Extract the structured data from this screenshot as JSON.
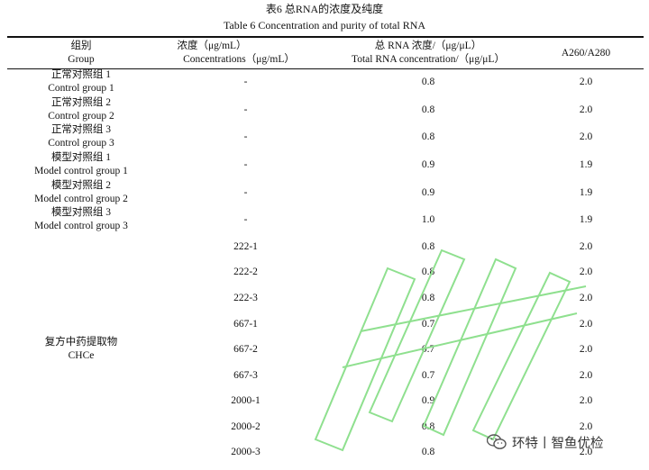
{
  "caption": {
    "zh": "表6  总RNA的浓度及纯度",
    "en": "Table 6 Concentration and purity of total RNA"
  },
  "header": {
    "group_zh": "组别",
    "group_en": "Group",
    "conc_zh": "浓度（μg/mL）",
    "conc_en": "Concentrations（μg/mL）",
    "rna_zh": "总 RNA 浓度/（μg/μL）",
    "rna_en": "Total RNA concentration/（μg/μL）",
    "ratio": "A260/A280"
  },
  "rows": [
    {
      "group_zh": "正常对照组 1",
      "group_en": "Control group 1",
      "conc": "-",
      "rna": "0.8",
      "ratio": "2.0"
    },
    {
      "group_zh": "正常对照组 2",
      "group_en": "Control group 2",
      "conc": "-",
      "rna": "0.8",
      "ratio": "2.0"
    },
    {
      "group_zh": "正常对照组 3",
      "group_en": "Control group 3",
      "conc": "-",
      "rna": "0.8",
      "ratio": "2.0"
    },
    {
      "group_zh": "模型对照组 1",
      "group_en": "Model control group 1",
      "conc": "-",
      "rna": "0.9",
      "ratio": "1.9"
    },
    {
      "group_zh": "模型对照组 2",
      "group_en": "Model control group 2",
      "conc": "-",
      "rna": "0.9",
      "ratio": "1.9"
    },
    {
      "group_zh": "模型对照组 3",
      "group_en": "Model control group 3",
      "conc": "-",
      "rna": "1.0",
      "ratio": "1.9"
    },
    {
      "conc": "222-1",
      "rna": "0.8",
      "ratio": "2.0"
    },
    {
      "conc": "222-2",
      "rna": "0.8",
      "ratio": "2.0"
    },
    {
      "conc": "222-3",
      "rna": "0.8",
      "ratio": "2.0"
    },
    {
      "conc": "667-1",
      "rna": "0.7",
      "ratio": "2.0"
    },
    {
      "conc": "667-2",
      "rna": "0.7",
      "ratio": "2.0"
    },
    {
      "conc": "667-3",
      "rna": "0.7",
      "ratio": "2.0"
    },
    {
      "conc": "2000-1",
      "rna": "0.9",
      "ratio": "2.0"
    },
    {
      "conc": "2000-2",
      "rna": "0.8",
      "ratio": "2.0"
    },
    {
      "conc": "2000-3",
      "rna": "0.8",
      "ratio": "2.0"
    }
  ],
  "chce_group": {
    "zh": "复方中药提取物",
    "en": "CHCe"
  },
  "wechat": {
    "label": "环特丨智鱼优检",
    "icon": "wechat-icon"
  },
  "watermark_color": "#8fe08f"
}
